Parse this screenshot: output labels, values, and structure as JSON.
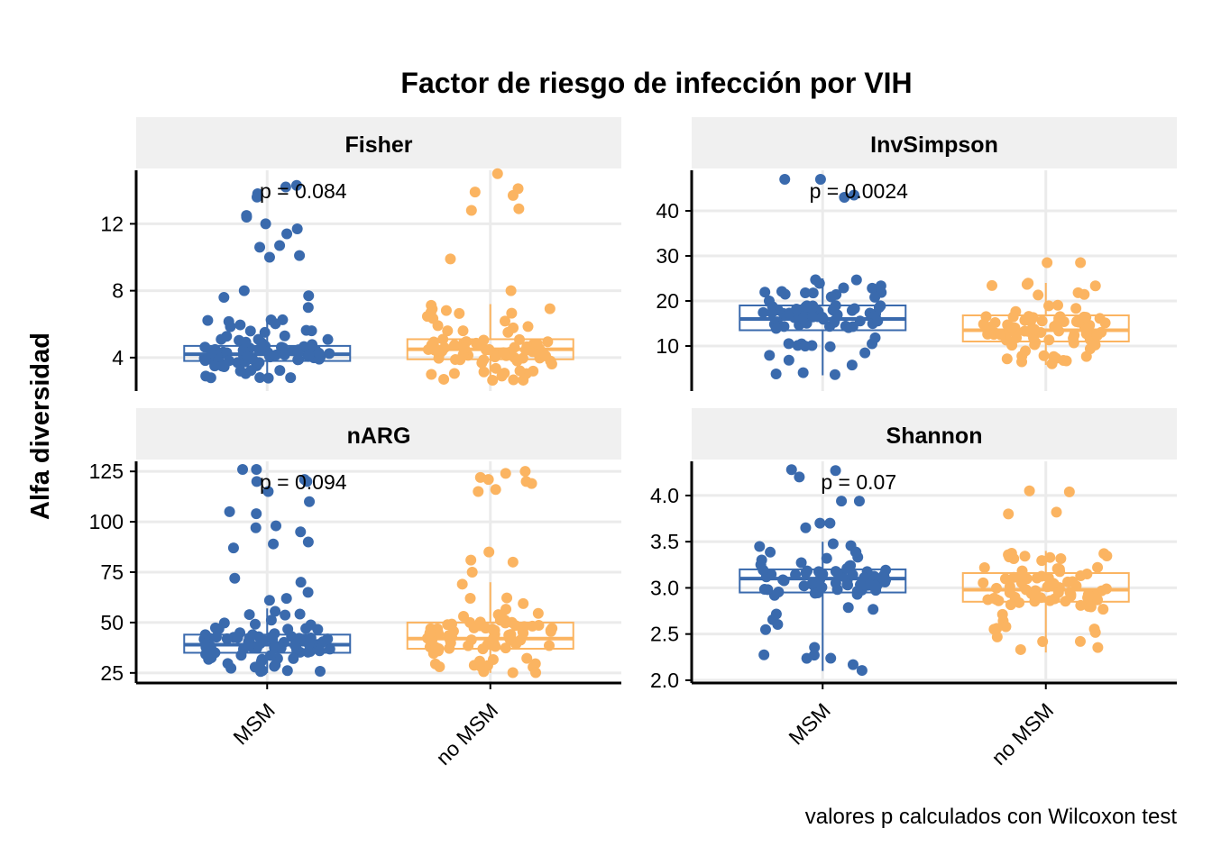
{
  "chart_data": {
    "type": "box",
    "title": "Factor de riesgo de infección por VIH",
    "ylabel": "Alfa diversidad",
    "caption": "valores p calculados con Wilcoxon test",
    "categories": [
      "MSM",
      "no MSM"
    ],
    "colors": {
      "MSM": "#3a6aad",
      "no MSM": "#fbb461"
    },
    "panels": [
      {
        "name": "Fisher",
        "pvalue_label": "p = 0.084",
        "ylim": [
          2.0,
          15.2
        ],
        "yticks": [
          4,
          8,
          12
        ],
        "groups": [
          {
            "category": "MSM",
            "q1": 3.8,
            "median": 4.2,
            "q3": 4.7,
            "whisker_low": 2.5,
            "whisker_high": 6.3,
            "outliers": [
              7.0,
              7.6,
              7.7,
              8.0,
              10.0,
              10.1,
              10.6,
              10.7,
              11.4,
              11.7,
              12.0,
              12.4,
              12.5,
              13.6,
              13.8,
              14.2,
              14.3
            ]
          },
          {
            "category": "no MSM",
            "q1": 3.9,
            "median": 4.5,
            "q3": 5.1,
            "whisker_low": 2.6,
            "whisker_high": 7.2,
            "outliers": [
              8.0,
              9.9,
              12.8,
              12.9,
              13.7,
              13.9,
              14.1,
              15.0
            ]
          }
        ]
      },
      {
        "name": "InvSimpson",
        "pvalue_label": "p = 0.0024",
        "ylim": [
          0,
          49
        ],
        "yticks": [
          10,
          20,
          30,
          40
        ],
        "groups": [
          {
            "category": "MSM",
            "q1": 13.5,
            "median": 16.0,
            "q3": 19.0,
            "whisker_low": 3.5,
            "whisker_high": 25.0,
            "outliers": [
              43.0,
              43.5,
              47.0,
              47.0
            ]
          },
          {
            "category": "no MSM",
            "q1": 11.0,
            "median": 13.5,
            "q3": 16.8,
            "whisker_low": 5.8,
            "whisker_high": 24.0,
            "outliers": [
              28.5,
              28.5
            ]
          }
        ]
      },
      {
        "name": "nARG",
        "pvalue_label": "p = 0.094",
        "ylim": [
          20,
          130
        ],
        "yticks": [
          25,
          50,
          75,
          100,
          125
        ],
        "groups": [
          {
            "category": "MSM",
            "q1": 35,
            "median": 39,
            "q3": 44,
            "whisker_low": 25,
            "whisker_high": 57,
            "outliers": [
              61,
              62,
              65,
              70,
              72,
              87,
              89,
              90,
              95,
              97,
              98,
              104,
              105,
              110,
              115,
              120,
              120,
              121,
              126,
              126
            ]
          },
          {
            "category": "no MSM",
            "q1": 37,
            "median": 42,
            "q3": 50,
            "whisker_low": 25,
            "whisker_high": 70,
            "outliers": [
              75,
              80,
              81,
              85,
              115,
              116,
              119,
              120,
              121,
              122,
              124,
              125
            ]
          }
        ]
      },
      {
        "name": "Shannon",
        "pvalue_label": "p = 0.07",
        "ylim": [
          1.97,
          4.37
        ],
        "yticks": [
          2.0,
          2.5,
          3.0,
          3.5,
          4.0
        ],
        "groups": [
          {
            "category": "MSM",
            "q1": 2.95,
            "median": 3.1,
            "q3": 3.2,
            "whisker_low": 2.1,
            "whisker_high": 3.5,
            "outliers": [
              3.65,
              3.7,
              3.7,
              3.94,
              3.94,
              4.2,
              4.27,
              4.28
            ]
          },
          {
            "category": "no MSM",
            "q1": 2.85,
            "median": 2.98,
            "q3": 3.16,
            "whisker_low": 2.3,
            "whisker_high": 3.4,
            "outliers": [
              3.8,
              3.82,
              4.04,
              4.05
            ]
          }
        ]
      }
    ]
  }
}
